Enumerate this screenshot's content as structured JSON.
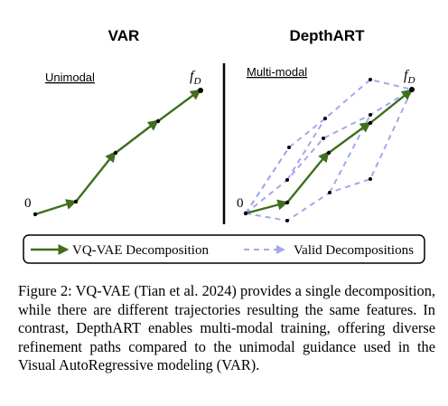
{
  "figure": {
    "left_panel": {
      "title": "VAR",
      "mode_label": "Unimodal",
      "origin_label": "0",
      "target_label": "f",
      "target_subscript": "D"
    },
    "right_panel": {
      "title": "DepthART",
      "mode_label": "Multi-modal",
      "origin_label": "0",
      "target_label": "f",
      "target_subscript": "D"
    },
    "legend": {
      "solid_label": "VQ-VAE Decomposition",
      "dashed_label": "Valid Decompositions"
    },
    "colors": {
      "solid_path": "#3f6e1e",
      "dashed_path": "#a6a6ee",
      "node": "#000000",
      "divider": "#000000"
    }
  },
  "caption": {
    "text": "Figure 2: VQ-VAE (Tian et al. 2024) provides a single decomposition, while there are different trajectories resulting the same features. In contrast, DepthART enables multi-modal training, offering diverse refinement paths compared to the unimodal guidance used in the Visual AutoRegressive modeling (VAR)."
  }
}
